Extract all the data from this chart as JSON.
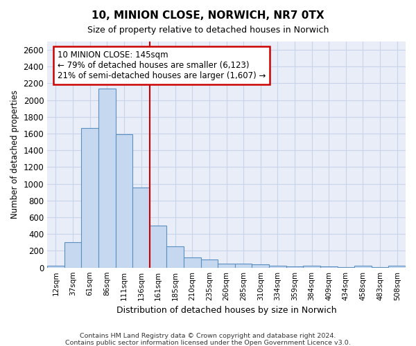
{
  "title_line1": "10, MINION CLOSE, NORWICH, NR7 0TX",
  "title_line2": "Size of property relative to detached houses in Norwich",
  "xlabel": "Distribution of detached houses by size in Norwich",
  "ylabel": "Number of detached properties",
  "categories": [
    "12sqm",
    "37sqm",
    "61sqm",
    "86sqm",
    "111sqm",
    "136sqm",
    "161sqm",
    "185sqm",
    "210sqm",
    "235sqm",
    "260sqm",
    "285sqm",
    "310sqm",
    "334sqm",
    "359sqm",
    "384sqm",
    "409sqm",
    "434sqm",
    "458sqm",
    "483sqm",
    "508sqm"
  ],
  "values": [
    25,
    300,
    1670,
    2140,
    1590,
    960,
    505,
    250,
    120,
    100,
    50,
    45,
    35,
    20,
    15,
    20,
    15,
    5,
    20,
    5,
    25
  ],
  "bar_color": "#c5d8f0",
  "bar_edge_color": "#5a8fc2",
  "vline_x_index": 5.5,
  "vline_color": "#cc0000",
  "annotation_line1": "10 MINION CLOSE: 145sqm",
  "annotation_line2": "← 79% of detached houses are smaller (6,123)",
  "annotation_line3": "21% of semi-detached houses are larger (1,607) →",
  "annotation_box_color": "#cc0000",
  "ylim": [
    0,
    2700
  ],
  "yticks": [
    0,
    200,
    400,
    600,
    800,
    1000,
    1200,
    1400,
    1600,
    1800,
    2000,
    2200,
    2400,
    2600
  ],
  "grid_color": "#c8d4e8",
  "background_color": "#e8edf8",
  "footnote1": "Contains HM Land Registry data © Crown copyright and database right 2024.",
  "footnote2": "Contains public sector information licensed under the Open Government Licence v3.0."
}
